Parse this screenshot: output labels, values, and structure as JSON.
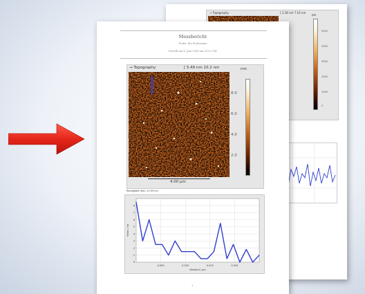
{
  "colors": {
    "arrow": "#e5261a",
    "profile_line": "#2f3fcf",
    "afm_dark": "#5a1a04",
    "afm_light": "#d87a2a"
  },
  "back_page": {
    "image_label": "Topography",
    "scale_label": "3.38 nm 7.16 nm",
    "colorbar_unit": "pm",
    "colorbar_ticks": [
      "5000",
      "4000",
      "3000",
      "2000",
      "1000",
      "0"
    ]
  },
  "front_page": {
    "title": "Messbericht",
    "subtitle": "Probe: Ein Probename",
    "date_line": "Erstellt am 4. Juni 2008 um 10:03 Uhr",
    "image_label": "Topography",
    "scale_label": "5.49 nm 10.2 nm",
    "colorbar_unit": "nm",
    "colorbar_ticks": [
      "8.0",
      "6.0",
      "4.0",
      "2.0"
    ],
    "scale_bar": "4.00 µm",
    "roughness": "Rauhigkeit (Sa): 11.93 nm",
    "page_number": "1"
  },
  "chart_data": [
    {
      "type": "line",
      "x": [
        0,
        1,
        2,
        3,
        4,
        5,
        6,
        7,
        8,
        9,
        10,
        11,
        12,
        13,
        14,
        15,
        16,
        17,
        18,
        19
      ],
      "values": [
        8.5,
        3,
        6,
        2.5,
        2.5,
        1,
        3,
        1.5,
        1.5,
        1.5,
        0.5,
        0.5,
        1.5,
        5.5,
        0.5,
        2.5,
        0,
        1.8,
        0,
        1
      ],
      "ylim": [
        0,
        9
      ],
      "xtick_labels": [
        "0.005",
        "0.010",
        "0.015",
        "0.020"
      ],
      "xlabel": "Abstand / µm",
      "ylabel": "Höhe / nm",
      "grid": true
    }
  ]
}
